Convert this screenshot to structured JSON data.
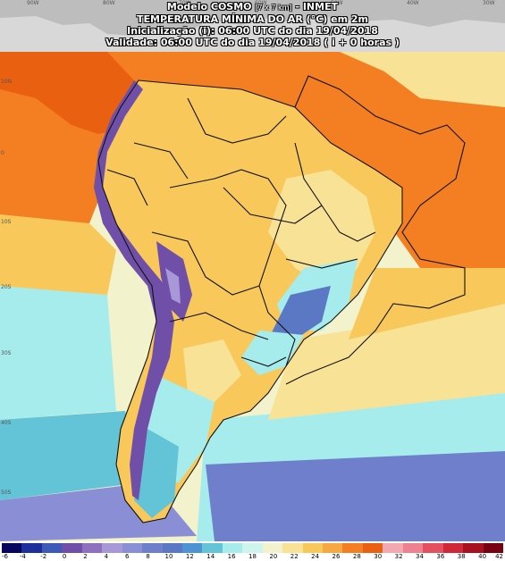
{
  "header": {
    "model_name": "Modelo COSMO",
    "resolution": "[7 x 7 km]",
    "institute": "- INMET",
    "variable": "TEMPERATURA MÍNIMA DO AR (°C) em 2m",
    "init": "Inicialização (i): 06:00 UTC do dia 19/04/2018",
    "valid": "Validade: 06:00 UTC do dia 19/04/2018 ( i + 0 horas )"
  },
  "longitude_labels": [
    "90W",
    "80W",
    "70W",
    "60W",
    "50W",
    "40W",
    "30W"
  ],
  "latitude_labels": [
    "10N",
    "0",
    "10S",
    "20S",
    "30S",
    "40S",
    "50S"
  ],
  "colorbar": {
    "ticks": [
      "-6",
      "-4",
      "-2",
      "0",
      "2",
      "4",
      "6",
      "8",
      "10",
      "12",
      "14",
      "16",
      "18",
      "20",
      "22",
      "24",
      "26",
      "28",
      "30",
      "32",
      "34",
      "36",
      "38",
      "40",
      "42"
    ],
    "colors": [
      "#06065e",
      "#1c2f9c",
      "#3e5ab8",
      "#6f4fa8",
      "#8e6fc0",
      "#a898d8",
      "#8a8ed4",
      "#6f7fcc",
      "#5a78c4",
      "#4f93d4",
      "#62c4d6",
      "#a6ecec",
      "#cdf5ee",
      "#f2f2cc",
      "#f8e296",
      "#f8c85a",
      "#f8a840",
      "#f47e22",
      "#e86010",
      "#f4a8b0",
      "#ef8090",
      "#e45060",
      "#d02838",
      "#a81020",
      "#780010"
    ]
  }
}
